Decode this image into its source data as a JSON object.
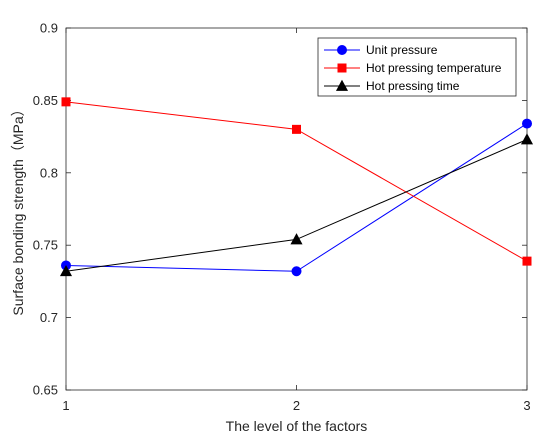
{
  "chart_data": {
    "type": "line",
    "xlabel": "The level of the factors",
    "ylabel": "Surface bonding strength（MPa）",
    "x": [
      1,
      2,
      3
    ],
    "xticks": [
      "1",
      "2",
      "3"
    ],
    "xlim": [
      1,
      3
    ],
    "ylim": [
      0.65,
      0.9
    ],
    "yticks": [
      "0.65",
      "0.7",
      "0.75",
      "0.8",
      "0.85",
      "0.9"
    ],
    "grid": false,
    "legend_position": "top-right",
    "series": [
      {
        "name": "Unit pressure",
        "color": "#0000ff",
        "marker": "circle",
        "values": [
          0.736,
          0.732,
          0.834
        ]
      },
      {
        "name": "Hot pressing temperature",
        "color": "#ff0000",
        "marker": "square",
        "values": [
          0.849,
          0.83,
          0.739
        ]
      },
      {
        "name": "Hot pressing time",
        "color": "#000000",
        "marker": "triangle",
        "values": [
          0.732,
          0.754,
          0.823
        ]
      }
    ]
  }
}
